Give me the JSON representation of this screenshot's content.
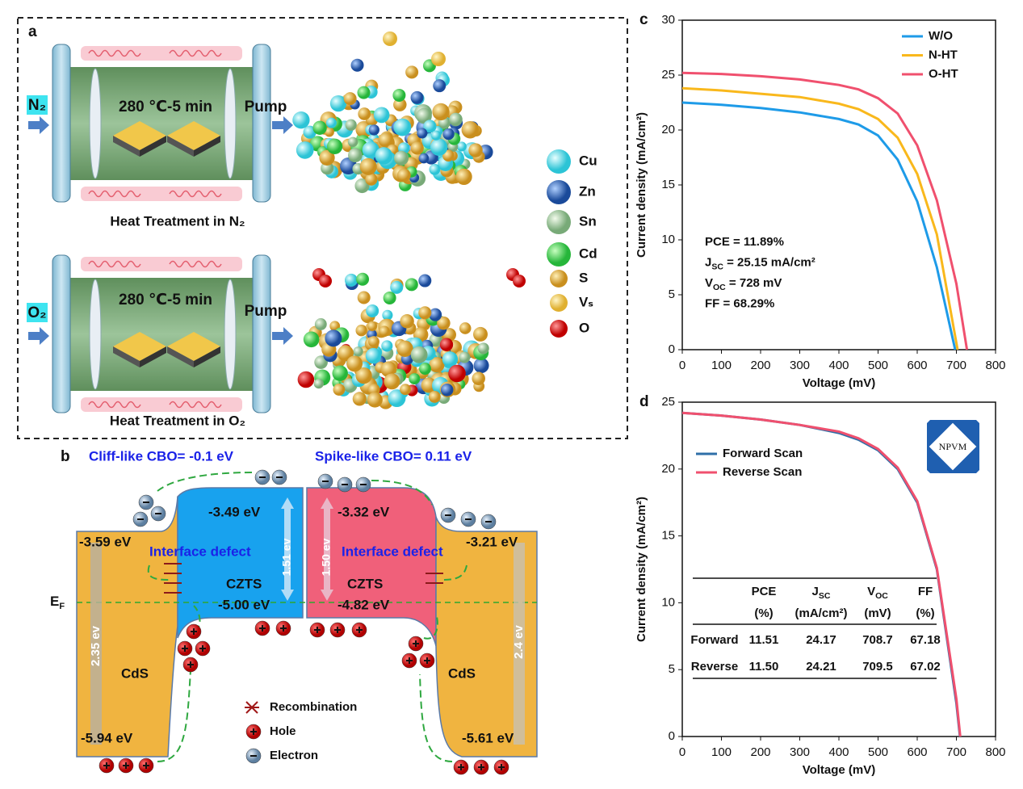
{
  "panel_a": {
    "label": "a",
    "top": {
      "gas": "N₂",
      "temp": "280 ℃-5 min",
      "pump": "Pump",
      "caption": "Heat Treatment in N₂"
    },
    "bottom": {
      "gas": "O₂",
      "temp": "280 ℃-5 min",
      "pump": "Pump",
      "caption": "Heat Treatment in O₂"
    },
    "legend": [
      "Cu",
      "Zn",
      "Sn",
      "Cd",
      "S",
      "Vₛ",
      "O"
    ]
  },
  "panel_b": {
    "label": "b",
    "cliff": "Cliff-like CBO= -0.1 eV",
    "spike": "Spike-like CBO= 0.11 eV",
    "left_cds_cb": "-3.59 eV",
    "left_czts_cb": "-3.49 eV",
    "right_czts_cb": "-3.32 eV",
    "right_cds_cb": "-3.21 eV",
    "left_defect": "Interface defect",
    "right_defect": "Interface defect",
    "left_czts_gap": "1.51 ev",
    "right_czts_gap": "1.50 ev",
    "left_czts": "CZTS",
    "right_czts": "CZTS",
    "left_czts_vb": "-5.00 eV",
    "right_czts_vb": "-4.82 eV",
    "fermi": {
      "main": "E",
      "sub": "F"
    },
    "left_cds_gap": "2.35 ev",
    "right_cds_gap": "2.4 ev",
    "left_cds": "CdS",
    "right_cds": "CdS",
    "left_cds_vb": "-5.94 eV",
    "right_cds_vb": "-5.61 eV",
    "legend": [
      "Recombination",
      "Hole",
      "Electron"
    ]
  },
  "chart_data": [
    {
      "type": "line",
      "label": "c",
      "xlabel": "Voltage (mV)",
      "ylabel": "Current density (mA/cm²)",
      "xlim": [
        0,
        800
      ],
      "xticks": [
        0,
        100,
        200,
        300,
        400,
        500,
        600,
        700,
        800
      ],
      "ylim": [
        0,
        30
      ],
      "yticks": [
        0,
        5,
        10,
        15,
        20,
        25,
        30
      ],
      "legend": "upper right",
      "series": [
        {
          "name": "W/O",
          "color": "#1e9be8",
          "x": [
            0,
            100,
            200,
            300,
            400,
            450,
            500,
            550,
            600,
            650,
            697
          ],
          "values": [
            22.5,
            22.3,
            22.0,
            21.6,
            21.0,
            20.5,
            19.5,
            17.3,
            13.5,
            7.5,
            0
          ]
        },
        {
          "name": "N-HT",
          "color": "#f9b81c",
          "x": [
            0,
            100,
            200,
            300,
            400,
            450,
            500,
            550,
            600,
            650,
            703
          ],
          "values": [
            23.8,
            23.6,
            23.3,
            23.0,
            22.4,
            21.9,
            21.0,
            19.3,
            16.0,
            10.5,
            0
          ]
        },
        {
          "name": "O-HT",
          "color": "#f0506e",
          "x": [
            0,
            100,
            200,
            300,
            400,
            450,
            500,
            550,
            600,
            650,
            700,
            727
          ],
          "values": [
            25.2,
            25.1,
            24.9,
            24.6,
            24.1,
            23.7,
            22.9,
            21.5,
            18.6,
            13.6,
            6.0,
            0
          ]
        }
      ],
      "annotations": [
        "PCE = 11.89%",
        {
          "main": "J",
          "sub": "SC",
          "rest": " = 25.15 mA/cm²"
        },
        {
          "main": "V",
          "sub": "OC",
          "rest": " = 728 mV"
        },
        "FF = 68.29%"
      ]
    },
    {
      "type": "line",
      "label": "d",
      "xlabel": "Voltage (mV)",
      "ylabel": "Current density (mA/cm²)",
      "xlim": [
        0,
        800
      ],
      "xticks": [
        0,
        100,
        200,
        300,
        400,
        500,
        600,
        700,
        800
      ],
      "ylim": [
        0,
        25
      ],
      "yticks": [
        0,
        5,
        10,
        15,
        20,
        25
      ],
      "legend": "upper left",
      "series": [
        {
          "name": "Forward Scan",
          "color": "#2f6fa8",
          "x": [
            0,
            100,
            200,
            300,
            400,
            450,
            500,
            550,
            600,
            650,
            700,
            709
          ],
          "values": [
            24.2,
            24.0,
            23.7,
            23.3,
            22.7,
            22.2,
            21.4,
            20.0,
            17.5,
            12.5,
            2.5,
            0
          ]
        },
        {
          "name": "Reverse Scan",
          "color": "#f0506e",
          "x": [
            0,
            100,
            200,
            300,
            400,
            450,
            500,
            550,
            600,
            650,
            700,
            710
          ],
          "values": [
            24.2,
            24.0,
            23.7,
            23.3,
            22.8,
            22.3,
            21.5,
            20.1,
            17.6,
            12.6,
            2.8,
            0
          ]
        }
      ],
      "logo": "NPVM",
      "table": {
        "header": [
          [
            "PCE",
            "(%)"
          ],
          [
            {
              "main": "J",
              "sub": "SC"
            },
            "(mA/cm²)"
          ],
          [
            {
              "main": "V",
              "sub": "OC"
            },
            "(mV)"
          ],
          [
            "FF",
            "(%)"
          ]
        ],
        "rows": [
          [
            "Forward",
            "11.51",
            "24.17",
            "708.7",
            "67.18"
          ],
          [
            "Reverse",
            "11.50",
            "24.21",
            "709.5",
            "67.02"
          ]
        ]
      }
    }
  ]
}
